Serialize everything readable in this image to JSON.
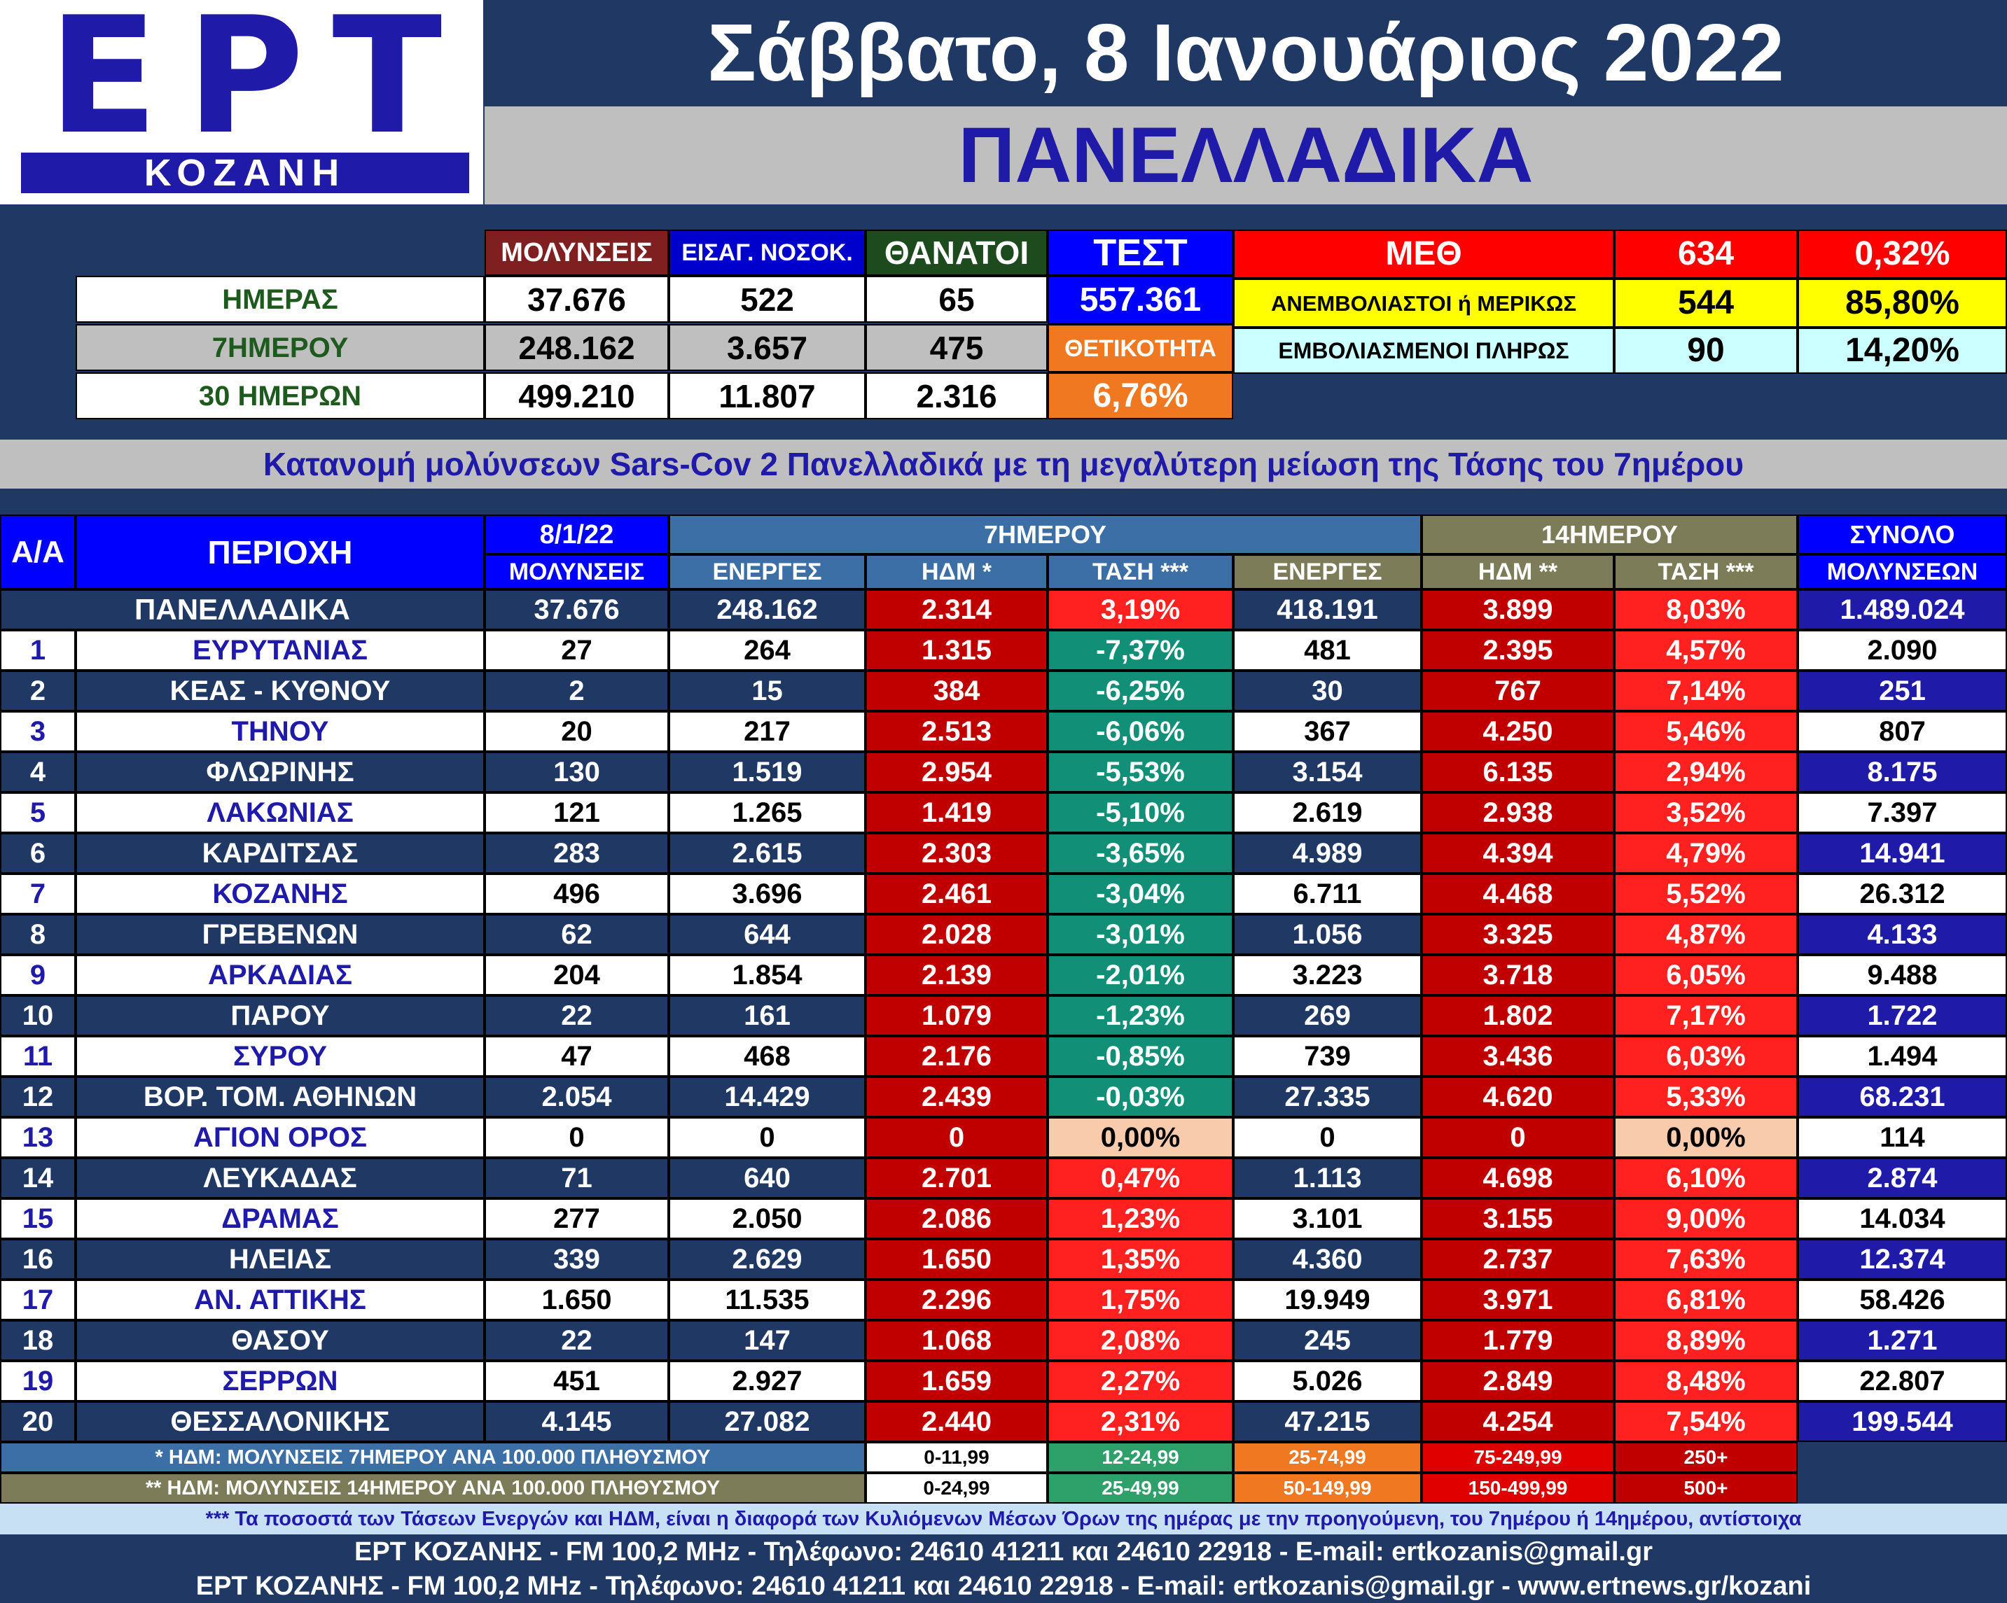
{
  "logo": {
    "text": "ΕΡΤ",
    "sub": "ΚΟΖΑΝΗ"
  },
  "header": {
    "date": "Σάββατο, 8 Ιανουάριος 2022",
    "region": "ΠΑΝΕΛΛΑΔΙΚΑ"
  },
  "summary": {
    "col_headers": [
      "ΜΟΛΥΝΣΕΙΣ",
      "ΕΙΣΑΓ. ΝΟΣΟΚ.",
      "ΘΑΝΑΤΟΙ",
      "ΤΕΣΤ"
    ],
    "rows": [
      {
        "label": "ΗΜΕΡΑΣ",
        "values": [
          "37.676",
          "522",
          "65"
        ]
      },
      {
        "label": "7ΗΜΕΡΟΥ",
        "values": [
          "248.162",
          "3.657",
          "475"
        ]
      },
      {
        "label": "30 ΗΜΕΡΩΝ",
        "values": [
          "499.210",
          "11.807",
          "2.316"
        ]
      }
    ],
    "tests_value": "557.361",
    "positivity_label": "ΘΕΤΙΚΟΤΗΤΑ",
    "positivity_value": "6,76%"
  },
  "icu": {
    "rows": [
      {
        "label": "ΜΕΘ",
        "count": "634",
        "pct": "0,32%"
      },
      {
        "label": "ΑΝΕΜΒΟΛΙΑΣΤΟΙ ή ΜΕΡΙΚΩΣ",
        "count": "544",
        "pct": "85,80%"
      },
      {
        "label": "ΕΜΒΟΛΙΑΣΜΕΝΟΙ ΠΛΗΡΩΣ",
        "count": "90",
        "pct": "14,20%"
      }
    ]
  },
  "banner": "Κατανομή μολύνσεων Sars-Cov 2 Πανελλαδικά με τη μεγαλύτερη μείωση της Τάσης του 7ημέρου",
  "table": {
    "headers": {
      "aa": "Α/Α",
      "region": "ΠΕΡΙΟΧΗ",
      "date": "8/1/22",
      "infections": "ΜΟΛΥΝΣΕΙΣ",
      "week": "7ΗΜΕΡΟΥ",
      "fortnight": "14ΗΜΕΡΟΥ",
      "total_1": "ΣΥΝΟΛΟ",
      "total_2": "ΜΟΛΥΝΣΕΩΝ",
      "active": "ΕΝΕΡΓΕΣ",
      "hdm7": "ΗΔΜ *",
      "hdm14": "ΗΔΜ **",
      "trend": "ΤΑΣΗ ***"
    },
    "national": {
      "name": "ΠΑΝΕΛΛΑΔΙΚΑ",
      "infections": "37.676",
      "active7": "248.162",
      "hdm7": "2.314",
      "trend7": "3,19%",
      "active14": "418.191",
      "hdm14": "3.899",
      "trend14": "8,03%",
      "total": "1.489.024"
    },
    "rows": [
      {
        "aa": "1",
        "name": "ΕΥΡΥΤΑΝΙΑΣ",
        "infections": "27",
        "active7": "264",
        "hdm7": "1.315",
        "trend7": "-7,37%",
        "active14": "481",
        "hdm14": "2.395",
        "trend14": "4,57%",
        "total": "2.090"
      },
      {
        "aa": "2",
        "name": "ΚΕΑΣ - ΚΥΘΝΟΥ",
        "infections": "2",
        "active7": "15",
        "hdm7": "384",
        "trend7": "-6,25%",
        "active14": "30",
        "hdm14": "767",
        "trend14": "7,14%",
        "total": "251"
      },
      {
        "aa": "3",
        "name": "ΤΗΝΟΥ",
        "infections": "20",
        "active7": "217",
        "hdm7": "2.513",
        "trend7": "-6,06%",
        "active14": "367",
        "hdm14": "4.250",
        "trend14": "5,46%",
        "total": "807"
      },
      {
        "aa": "4",
        "name": "ΦΛΩΡΙΝΗΣ",
        "infections": "130",
        "active7": "1.519",
        "hdm7": "2.954",
        "trend7": "-5,53%",
        "active14": "3.154",
        "hdm14": "6.135",
        "trend14": "2,94%",
        "total": "8.175"
      },
      {
        "aa": "5",
        "name": "ΛΑΚΩΝΙΑΣ",
        "infections": "121",
        "active7": "1.265",
        "hdm7": "1.419",
        "trend7": "-5,10%",
        "active14": "2.619",
        "hdm14": "2.938",
        "trend14": "3,52%",
        "total": "7.397"
      },
      {
        "aa": "6",
        "name": "ΚΑΡΔΙΤΣΑΣ",
        "infections": "283",
        "active7": "2.615",
        "hdm7": "2.303",
        "trend7": "-3,65%",
        "active14": "4.989",
        "hdm14": "4.394",
        "trend14": "4,79%",
        "total": "14.941"
      },
      {
        "aa": "7",
        "name": "ΚΟΖΑΝΗΣ",
        "infections": "496",
        "active7": "3.696",
        "hdm7": "2.461",
        "trend7": "-3,04%",
        "active14": "6.711",
        "hdm14": "4.468",
        "trend14": "5,52%",
        "total": "26.312"
      },
      {
        "aa": "8",
        "name": "ΓΡΕΒΕΝΩΝ",
        "infections": "62",
        "active7": "644",
        "hdm7": "2.028",
        "trend7": "-3,01%",
        "active14": "1.056",
        "hdm14": "3.325",
        "trend14": "4,87%",
        "total": "4.133"
      },
      {
        "aa": "9",
        "name": "ΑΡΚΑΔΙΑΣ",
        "infections": "204",
        "active7": "1.854",
        "hdm7": "2.139",
        "trend7": "-2,01%",
        "active14": "3.223",
        "hdm14": "3.718",
        "trend14": "6,05%",
        "total": "9.488"
      },
      {
        "aa": "10",
        "name": "ΠΑΡΟΥ",
        "infections": "22",
        "active7": "161",
        "hdm7": "1.079",
        "trend7": "-1,23%",
        "active14": "269",
        "hdm14": "1.802",
        "trend14": "7,17%",
        "total": "1.722"
      },
      {
        "aa": "11",
        "name": "ΣΥΡΟΥ",
        "infections": "47",
        "active7": "468",
        "hdm7": "2.176",
        "trend7": "-0,85%",
        "active14": "739",
        "hdm14": "3.436",
        "trend14": "6,03%",
        "total": "1.494"
      },
      {
        "aa": "12",
        "name": "ΒΟΡ. ΤΟΜ. ΑΘΗΝΩΝ",
        "infections": "2.054",
        "active7": "14.429",
        "hdm7": "2.439",
        "trend7": "-0,03%",
        "active14": "27.335",
        "hdm14": "4.620",
        "trend14": "5,33%",
        "total": "68.231"
      },
      {
        "aa": "13",
        "name": "ΑΓΙΟΝ ΟΡΟΣ",
        "infections": "0",
        "active7": "0",
        "hdm7": "0",
        "trend7": "0,00%",
        "active14": "0",
        "hdm14": "0",
        "trend14": "0,00%",
        "total": "114"
      },
      {
        "aa": "14",
        "name": "ΛΕΥΚΑΔΑΣ",
        "infections": "71",
        "active7": "640",
        "hdm7": "2.701",
        "trend7": "0,47%",
        "active14": "1.113",
        "hdm14": "4.698",
        "trend14": "6,10%",
        "total": "2.874"
      },
      {
        "aa": "15",
        "name": "ΔΡΑΜΑΣ",
        "infections": "277",
        "active7": "2.050",
        "hdm7": "2.086",
        "trend7": "1,23%",
        "active14": "3.101",
        "hdm14": "3.155",
        "trend14": "9,00%",
        "total": "14.034"
      },
      {
        "aa": "16",
        "name": "ΗΛΕΙΑΣ",
        "infections": "339",
        "active7": "2.629",
        "hdm7": "1.650",
        "trend7": "1,35%",
        "active14": "4.360",
        "hdm14": "2.737",
        "trend14": "7,63%",
        "total": "12.374"
      },
      {
        "aa": "17",
        "name": "ΑΝ. ΑΤΤΙΚΗΣ",
        "infections": "1.650",
        "active7": "11.535",
        "hdm7": "2.296",
        "trend7": "1,75%",
        "active14": "19.949",
        "hdm14": "3.971",
        "trend14": "6,81%",
        "total": "58.426"
      },
      {
        "aa": "18",
        "name": "ΘΑΣΟΥ",
        "infections": "22",
        "active7": "147",
        "hdm7": "1.068",
        "trend7": "2,08%",
        "active14": "245",
        "hdm14": "1.779",
        "trend14": "8,89%",
        "total": "1.271"
      },
      {
        "aa": "19",
        "name": "ΣΕΡΡΩΝ",
        "infections": "451",
        "active7": "2.927",
        "hdm7": "1.659",
        "trend7": "2,27%",
        "active14": "5.026",
        "hdm14": "2.849",
        "trend14": "8,48%",
        "total": "22.807"
      },
      {
        "aa": "20",
        "name": "ΘΕΣΣΑΛΟΝΙΚΗΣ",
        "infections": "4.145",
        "active7": "27.082",
        "hdm7": "2.440",
        "trend7": "2,31%",
        "active14": "47.215",
        "hdm14": "4.254",
        "trend14": "7,54%",
        "total": "199.544"
      }
    ]
  },
  "legend": {
    "rows": [
      {
        "label": "* ΗΔΜ: ΜΟΛΥΝΣΕΙΣ 7ΗΜΕΡΟΥ ΑΝΑ 100.000 ΠΛΗΘΥΣΜΟΥ",
        "ranges": [
          "0-11,99",
          "12-24,99",
          "25-74,99",
          "75-249,99",
          "250+"
        ]
      },
      {
        "label": "** ΗΔΜ: ΜΟΛΥΝΣΕΙΣ 14ΗΜΕΡΟΥ ΑΝΑ 100.000 ΠΛΗΘΥΣΜΟΥ",
        "ranges": [
          "0-24,99",
          "25-49,99",
          "50-149,99",
          "150-499,99",
          "500+"
        ]
      }
    ]
  },
  "footer": {
    "note": "*** Τα ποσοστά των Τάσεων Ενεργών και ΗΔΜ, είναι η διαφορά των Κυλιόμενων Μέσων Όρων της ημέρας με την προηγούμενη, του 7ημέρου ή 14ημέρου, αντίστοιχα",
    "line1": "ΕΡΤ ΚΟΖΑΝΗΣ - FM 100,2 MHz - Τηλέφωνο:  24610 41211 και 24610 22918 - E-mail: ertkozanis@gmail.gr",
    "line2": "ΕΡΤ ΚΟΖΑΝΗΣ - FM 100,2 MHz - Τηλέφωνο:  24610 41211 και 24610 22918 - E-mail: ertkozanis@gmail.gr - www.ertnews.gr/kozani"
  },
  "colors": {
    "background": "#1F3864",
    "logo_blue": "#1F1AA8",
    "infections_header": "#7F1F1F",
    "admissions_header": "#0000CC",
    "deaths_header": "#1E4B1E",
    "tests": "#0000FF",
    "positivity": "#F07820",
    "icu_red": "#FF0000",
    "unvaccinated_yellow": "#FFFF00",
    "vaccinated_cyan": "#CCFFFF",
    "hdm_red": "#C00000",
    "trend_down": "#129077",
    "trend_up": "#FF2020",
    "trend_zero": "#F8CBAD",
    "week_header": "#3C6FA6",
    "fortnight_header": "#7C7C58",
    "header_blue": "#0000FF"
  }
}
